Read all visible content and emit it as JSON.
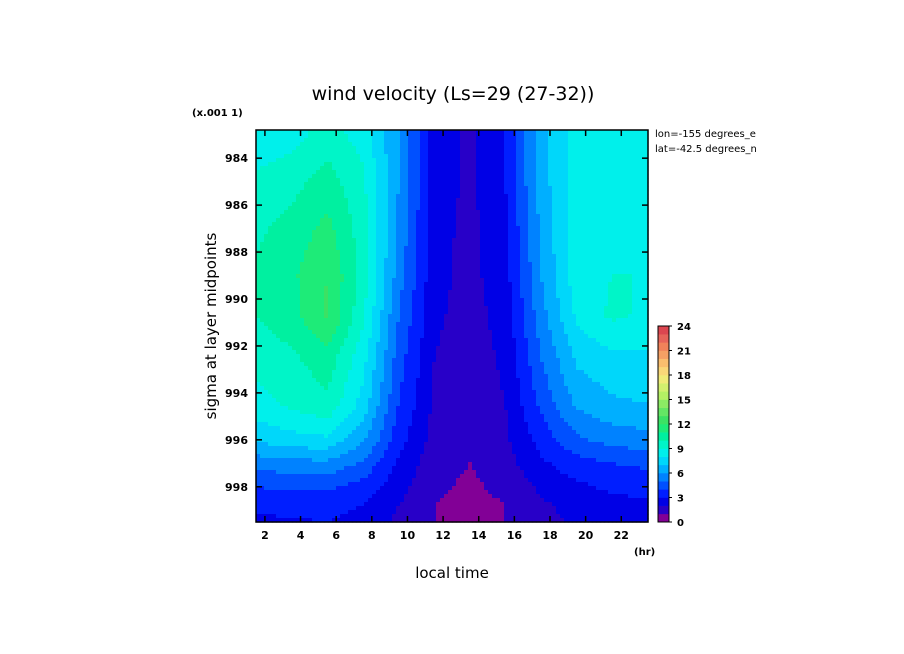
{
  "chart_data": {
    "type": "heatmap",
    "title": "wind velocity (Ls=29 (27-32))",
    "xlabel": "local time",
    "xunit": "(hr)",
    "ylabel": "sigma at layer midpoints",
    "yscale_note": "(x.001 1)",
    "annotations": [
      "lon=-155 degrees_e",
      "lat=-42.5 degrees_n"
    ],
    "x_ticks": [
      "2",
      "4",
      "6",
      "8",
      "10",
      "12",
      "14",
      "16",
      "18",
      "20",
      "22"
    ],
    "y_ticks": [
      "984",
      "986",
      "988",
      "990",
      "992",
      "994",
      "996",
      "998"
    ],
    "colorbar_ticks": [
      "0",
      "3",
      "6",
      "9",
      "12",
      "15",
      "18",
      "21",
      "24"
    ],
    "xlim": [
      1.5,
      23.5
    ],
    "ylim": [
      982.8,
      999.5
    ],
    "clim": [
      0,
      24
    ],
    "x": [
      1.5,
      3.5,
      5.5,
      7.5,
      9.5,
      11.5,
      13.5,
      15.5,
      17.5,
      19.5,
      21.5,
      23.5
    ],
    "y": [
      983.0,
      985.0,
      987.0,
      989.0,
      990.7,
      992.5,
      994.5,
      996.0,
      997.0,
      998.0,
      998.8,
      999.5
    ],
    "z": [
      [
        8.4,
        8.6,
        9.4,
        8.6,
        6.0,
        2.5,
        1.8,
        3.0,
        6.5,
        8.5,
        8.5,
        8.4
      ],
      [
        9.2,
        9.6,
        10.5,
        9.2,
        6.0,
        2.5,
        1.8,
        3.0,
        6.5,
        8.6,
        8.6,
        8.5
      ],
      [
        9.8,
        10.4,
        11.3,
        9.5,
        5.8,
        2.4,
        1.7,
        2.8,
        6.2,
        8.6,
        8.8,
        8.7
      ],
      [
        10.2,
        10.8,
        12.0,
        9.6,
        5.5,
        2.3,
        1.7,
        2.6,
        6.0,
        8.6,
        9.0,
        9.0
      ],
      [
        10.0,
        10.6,
        12.2,
        9.2,
        5.0,
        2.2,
        1.6,
        2.4,
        5.6,
        8.2,
        9.2,
        8.8
      ],
      [
        9.4,
        9.8,
        10.6,
        8.4,
        4.5,
        2.0,
        1.5,
        2.2,
        5.0,
        7.2,
        7.8,
        7.8
      ],
      [
        8.6,
        9.2,
        9.8,
        7.6,
        4.0,
        1.8,
        1.4,
        2.0,
        4.2,
        6.2,
        6.8,
        7.0
      ],
      [
        7.2,
        7.6,
        7.8,
        6.2,
        3.4,
        1.6,
        1.2,
        1.8,
        3.4,
        4.8,
        5.4,
        5.6
      ],
      [
        5.4,
        5.6,
        5.8,
        4.8,
        2.8,
        1.4,
        1.0,
        1.6,
        2.8,
        3.6,
        4.0,
        4.2
      ],
      [
        4.0,
        4.2,
        4.2,
        3.6,
        2.4,
        1.2,
        0.8,
        1.3,
        2.2,
        2.8,
        3.2,
        3.4
      ],
      [
        3.2,
        3.3,
        3.3,
        3.0,
        2.0,
        1.0,
        0.6,
        1.0,
        1.8,
        2.4,
        2.6,
        2.8
      ],
      [
        2.8,
        2.9,
        3.0,
        2.6,
        1.8,
        1.0,
        0.6,
        1.0,
        1.6,
        2.2,
        2.4,
        2.6
      ]
    ]
  }
}
